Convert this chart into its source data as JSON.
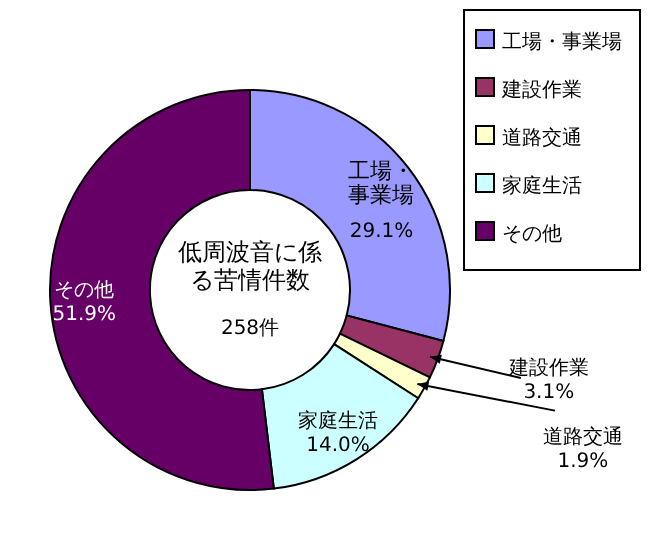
{
  "chart_data": {
    "type": "donut",
    "title": "低周波音に係る苦情件数",
    "subtitle": "258件",
    "categories": [
      "工場・事業場",
      "建設作業",
      "道路交通",
      "家庭生活",
      "その他"
    ],
    "values": [
      29.1,
      3.1,
      1.9,
      14.0,
      51.9
    ],
    "value_labels": [
      "29.1%",
      "3.1%",
      "1.9%",
      "14.0%",
      "51.9%"
    ],
    "colors": [
      "#9999ff",
      "#993366",
      "#ffffcc",
      "#ccffff",
      "#660066"
    ],
    "legend": "top right"
  }
}
